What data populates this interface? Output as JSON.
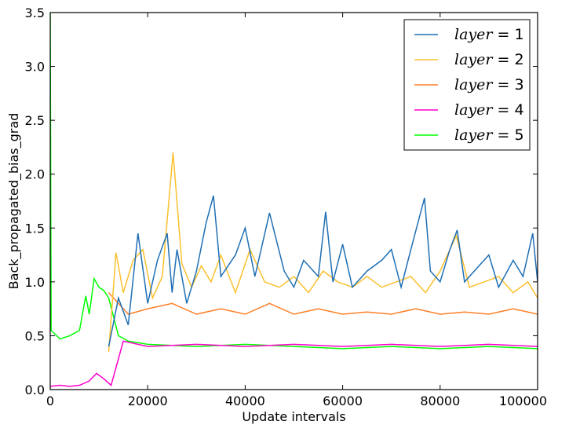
{
  "chart_data": {
    "type": "line",
    "xlabel": "Update intervals",
    "ylabel": "Back_propagated_bias_grad",
    "xlim": [
      0,
      100000
    ],
    "ylim": [
      0,
      3.5
    ],
    "x_ticks": [
      0,
      20000,
      40000,
      60000,
      80000,
      100000
    ],
    "y_ticks": [
      0.0,
      0.5,
      1.0,
      1.5,
      2.0,
      2.5,
      3.0,
      3.5
    ],
    "x_tick_labels": [
      "0",
      "20000",
      "40000",
      "60000",
      "80000",
      "100000"
    ],
    "y_tick_labels": [
      "0.0",
      "0.5",
      "1.0",
      "1.5",
      "2.0",
      "2.5",
      "3.0",
      "3.5"
    ],
    "grid": false,
    "legend_position": "top-right",
    "series": [
      {
        "name": "layer = 1",
        "legend_var": "layer",
        "legend_val": "= 1",
        "color": "#1f6fb4",
        "x": [
          12000,
          14000,
          16000,
          18000,
          20000,
          22000,
          24000,
          25000,
          26000,
          28000,
          30000,
          32000,
          33500,
          35000,
          38000,
          40000,
          42000,
          45000,
          48000,
          50000,
          52000,
          55000,
          56500,
          58000,
          60000,
          62000,
          65000,
          68000,
          70000,
          72000,
          74000,
          76800,
          78000,
          80000,
          82000,
          83500,
          85000,
          88000,
          90000,
          92000,
          95000,
          97000,
          99000,
          100000
        ],
        "values": [
          0.4,
          0.85,
          0.6,
          1.45,
          0.8,
          1.2,
          1.45,
          0.9,
          1.3,
          0.8,
          1.1,
          1.55,
          1.8,
          1.05,
          1.25,
          1.5,
          1.05,
          1.64,
          1.1,
          0.95,
          1.2,
          1.05,
          1.65,
          1.0,
          1.35,
          0.95,
          1.1,
          1.2,
          1.3,
          0.95,
          1.3,
          1.78,
          1.1,
          1.0,
          1.3,
          1.48,
          1.0,
          1.15,
          1.25,
          0.95,
          1.2,
          1.05,
          1.45,
          1.0
        ]
      },
      {
        "name": "layer = 2",
        "legend_var": "layer",
        "legend_val": "= 2",
        "color": "#fbc02d",
        "x": [
          12000,
          13500,
          15000,
          17000,
          19000,
          21000,
          23000,
          25200,
          27000,
          29000,
          31000,
          33000,
          35000,
          38000,
          41000,
          44000,
          47000,
          50000,
          53000,
          56000,
          59000,
          62000,
          65000,
          68000,
          71000,
          74000,
          77000,
          80000,
          83300,
          86000,
          89000,
          92000,
          95000,
          98000,
          100000
        ],
        "values": [
          0.35,
          1.27,
          0.9,
          1.2,
          1.3,
          0.85,
          1.05,
          2.2,
          1.17,
          0.95,
          1.15,
          1.0,
          1.25,
          0.9,
          1.3,
          1.0,
          0.95,
          1.05,
          0.9,
          1.1,
          1.0,
          0.95,
          1.05,
          0.95,
          1.0,
          1.05,
          0.9,
          1.1,
          1.43,
          0.95,
          1.0,
          1.05,
          0.9,
          1.0,
          0.85
        ]
      },
      {
        "name": "layer = 3",
        "legend_var": "layer",
        "legend_val": "= 3",
        "color": "#ff7f27",
        "x": [
          12000,
          16000,
          20000,
          25000,
          30000,
          35000,
          40000,
          45000,
          50000,
          55000,
          60000,
          65000,
          70000,
          75000,
          80000,
          85000,
          90000,
          95000,
          100000
        ],
        "values": [
          0.9,
          0.7,
          0.75,
          0.8,
          0.7,
          0.75,
          0.7,
          0.8,
          0.7,
          0.75,
          0.7,
          0.72,
          0.7,
          0.75,
          0.7,
          0.72,
          0.7,
          0.75,
          0.7
        ]
      },
      {
        "name": "layer = 4",
        "legend_var": "layer",
        "legend_val": "= 4",
        "color": "#ff00cc",
        "x": [
          0,
          2000,
          4000,
          6000,
          8000,
          9500,
          11000,
          12500,
          15000,
          20000,
          30000,
          40000,
          50000,
          60000,
          70000,
          80000,
          90000,
          100000
        ],
        "values": [
          0.03,
          0.04,
          0.03,
          0.04,
          0.08,
          0.15,
          0.1,
          0.04,
          0.45,
          0.4,
          0.42,
          0.4,
          0.42,
          0.4,
          0.42,
          0.4,
          0.42,
          0.4
        ]
      },
      {
        "name": "layer = 5",
        "legend_var": "layer",
        "legend_val": "= 5",
        "color": "#00ff00",
        "x": [
          0,
          200,
          2000,
          4000,
          6000,
          7300,
          8000,
          9000,
          10000,
          11000,
          12000,
          14000,
          16000,
          20000,
          30000,
          40000,
          50000,
          60000,
          70000,
          80000,
          90000,
          100000
        ],
        "values": [
          3.5,
          0.55,
          0.47,
          0.5,
          0.55,
          0.87,
          0.7,
          1.03,
          0.95,
          0.92,
          0.85,
          0.5,
          0.45,
          0.42,
          0.4,
          0.42,
          0.4,
          0.38,
          0.4,
          0.38,
          0.4,
          0.38
        ]
      }
    ]
  }
}
